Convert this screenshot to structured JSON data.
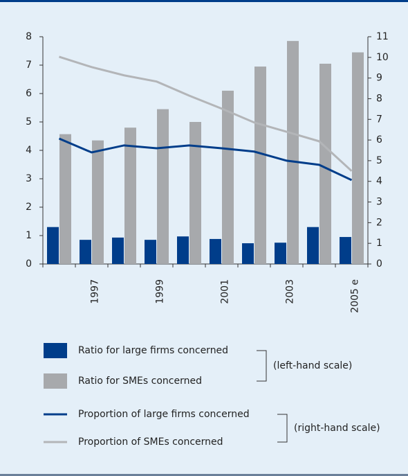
{
  "chart_data": {
    "type": "bar",
    "categories": [
      null,
      "1997",
      null,
      "1999",
      null,
      "2001",
      null,
      "2003",
      null,
      "2005 e"
    ],
    "series": [
      {
        "name": "Ratio for large firms concerned",
        "type": "bar",
        "color": "#003d8a",
        "values": [
          1.3,
          0.85,
          0.93,
          0.85,
          0.97,
          0.88,
          0.73,
          0.75,
          1.3,
          0.95
        ]
      },
      {
        "name": "Ratio for SMEs concerned",
        "type": "bar",
        "color": "#a7a9ac",
        "values": [
          4.57,
          4.35,
          4.8,
          5.45,
          5.0,
          6.1,
          6.95,
          7.85,
          7.05,
          7.45
        ]
      },
      {
        "name": "Proportion of large firms concerned",
        "type": "line",
        "axis": "y2",
        "color": "#003d8a",
        "values": [
          6.07,
          5.4,
          5.74,
          5.6,
          5.74,
          5.6,
          5.44,
          5.0,
          4.8,
          4.06
        ]
      },
      {
        "name": "Proportion of SMEs concerned",
        "type": "line",
        "axis": "y2",
        "color": "#b3b5b8",
        "values": [
          10.03,
          9.53,
          9.13,
          8.83,
          8.15,
          7.52,
          6.85,
          6.4,
          5.94,
          4.5
        ]
      }
    ],
    "scale_notes": [
      "(left-hand scale)",
      "(right-hand scale)"
    ],
    "ylim": [
      0,
      8
    ],
    "yticks": [
      0,
      1,
      2,
      3,
      4,
      5,
      6,
      7,
      8
    ],
    "y2lim": [
      0,
      11
    ],
    "y2ticks": [
      0,
      1,
      2,
      3,
      4,
      5,
      6,
      7,
      8,
      9,
      10,
      11
    ]
  }
}
